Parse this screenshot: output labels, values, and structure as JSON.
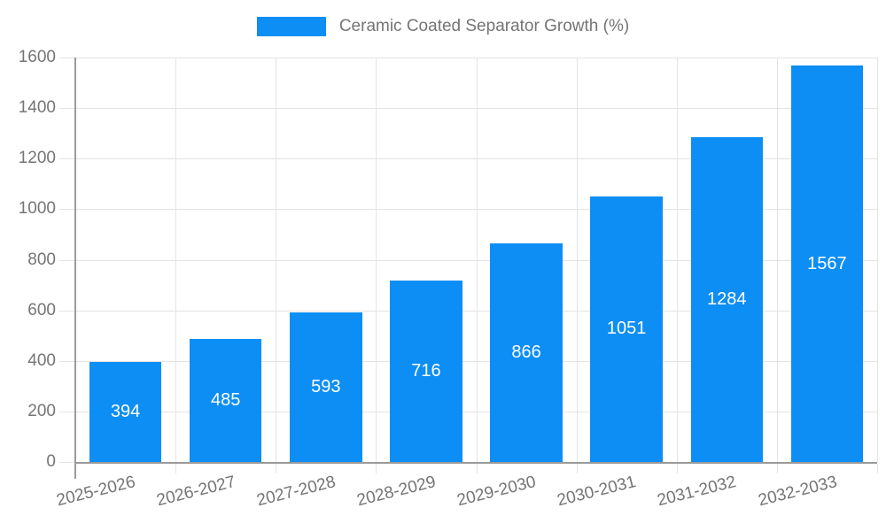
{
  "chart_data": {
    "type": "bar",
    "title": "",
    "legend": "Ceramic Coated Separator Growth (%)",
    "categories": [
      "2025-2026",
      "2026-2027",
      "2027-2028",
      "2028-2029",
      "2029-2030",
      "2030-2031",
      "2031-2032",
      "2032-2033"
    ],
    "values": [
      394,
      485,
      593,
      716,
      866,
      1051,
      1284,
      1567
    ],
    "xlabel": "",
    "ylabel": "",
    "ylim": [
      0,
      1600
    ],
    "ytick_step": 200,
    "yticks": [
      0,
      200,
      400,
      600,
      800,
      1000,
      1200,
      1400,
      1600
    ],
    "grid": true,
    "legend_position": "top-center",
    "bar_value_labels_inside": true,
    "colors": {
      "bar": "#0d8ef4",
      "grid": "#e4e4e4",
      "axis": "#9a9a9a",
      "text": "#757575",
      "value_label": "#ffffff",
      "background": "#ffffff"
    }
  }
}
